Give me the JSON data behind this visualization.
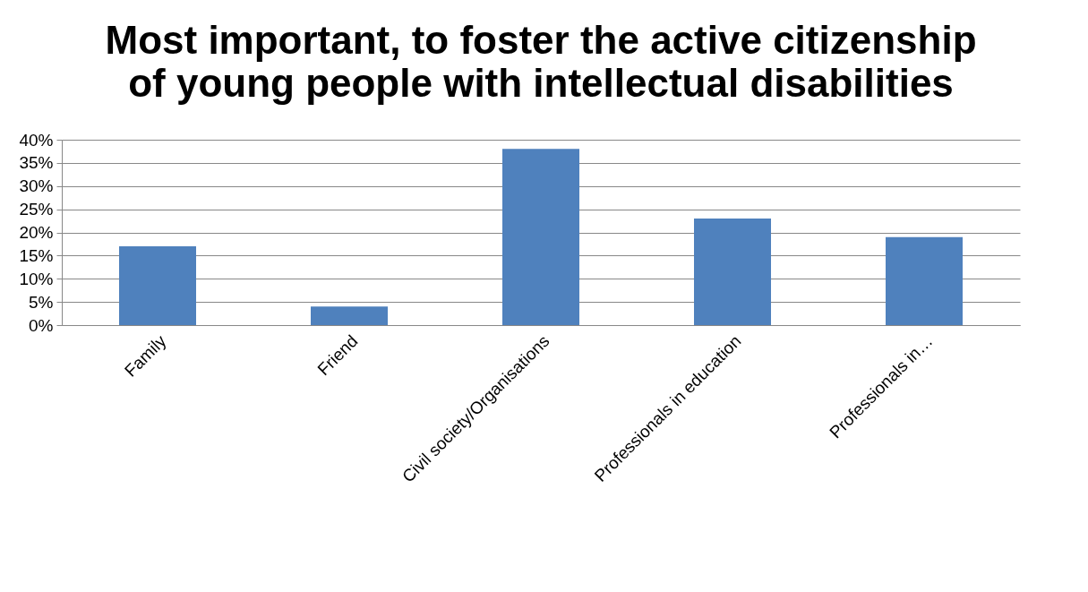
{
  "chart_data": {
    "type": "bar",
    "title": "Most important, to foster the active citizenship\nof young people with intellectual disabilities",
    "categories": [
      "Family",
      "Friend",
      "Civil society/Organisations",
      "Professionals in education",
      "Professionals in…"
    ],
    "values": [
      17,
      4,
      38,
      23,
      19
    ],
    "color": "#4f81bd",
    "ylim": [
      0,
      40
    ],
    "yticks": [
      {
        "value": 0,
        "label": "0%"
      },
      {
        "value": 5,
        "label": "5%"
      },
      {
        "value": 10,
        "label": "10%"
      },
      {
        "value": 15,
        "label": "15%"
      },
      {
        "value": 20,
        "label": "20%"
      },
      {
        "value": 25,
        "label": "25%"
      },
      {
        "value": 30,
        "label": "30%"
      },
      {
        "value": 35,
        "label": "35%"
      },
      {
        "value": 40,
        "label": "40%"
      }
    ],
    "grid": "y"
  }
}
